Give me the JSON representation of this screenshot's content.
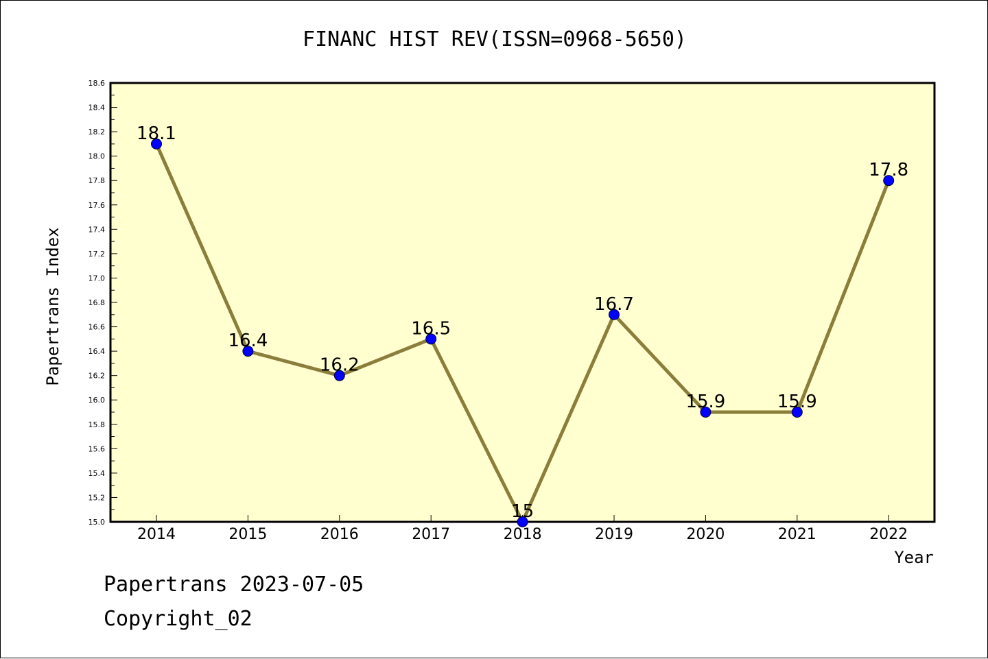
{
  "chart_data": {
    "type": "line",
    "title": "FINANC HIST REV(ISSN=0968-5650)",
    "xlabel": "Year",
    "ylabel": "Papertrans Index",
    "x": [
      "2014",
      "2015",
      "2016",
      "2017",
      "2018",
      "2019",
      "2020",
      "2021",
      "2022"
    ],
    "series": [
      {
        "values": [
          18.1,
          16.4,
          16.2,
          16.5,
          15.0,
          16.7,
          15.9,
          15.9,
          17.8
        ],
        "labels": [
          "18.1",
          "16.4",
          "16.2",
          "16.5",
          "15",
          "16.7",
          "15.9",
          "15.9",
          "17.8"
        ]
      }
    ],
    "ylim": [
      15.0,
      18.6
    ],
    "yticks": [
      "15.0",
      "15.2",
      "15.4",
      "15.6",
      "15.8",
      "16.0",
      "16.2",
      "16.4",
      "16.6",
      "16.8",
      "17.0",
      "17.2",
      "17.4",
      "17.6",
      "17.8",
      "18.0",
      "18.2",
      "18.4",
      "18.6"
    ],
    "grid": false,
    "colors": {
      "plot_background": "#ffffd0",
      "line": "#8b7d3a",
      "marker": "#0000ff"
    }
  },
  "footer": {
    "line1": "Papertrans 2023-07-05",
    "line2": "Copyright_02"
  }
}
